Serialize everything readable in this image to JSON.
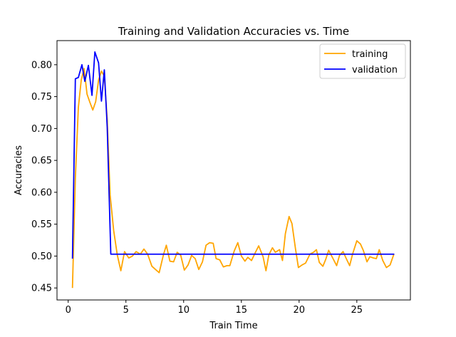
{
  "chart_data": {
    "type": "line",
    "title": "Training and Validation Accuracies vs. Time",
    "xlabel": "Train Time",
    "ylabel": "Accuracies",
    "xlim": [
      -0.97,
      29.64
    ],
    "ylim": [
      0.4312,
      0.8378
    ],
    "x_ticks": [
      0,
      5,
      10,
      15,
      20,
      25
    ],
    "x_tick_labels": [
      "0",
      "5",
      "10",
      "15",
      "20",
      "25"
    ],
    "y_ticks": [
      0.45,
      0.5,
      0.55,
      0.6,
      0.65,
      0.7,
      0.75,
      0.8
    ],
    "y_tick_labels": [
      "0.45",
      "0.50",
      "0.55",
      "0.60",
      "0.65",
      "0.70",
      "0.75",
      "0.80"
    ],
    "grid": false,
    "legend_position": "top-right",
    "series": [
      {
        "name": "training",
        "color": "#ffa500",
        "points": [
          [
            0.37,
            0.451
          ],
          [
            0.62,
            0.622
          ],
          [
            0.88,
            0.733
          ],
          [
            1.13,
            0.776
          ],
          [
            1.38,
            0.794
          ],
          [
            1.63,
            0.754
          ],
          [
            1.88,
            0.741
          ],
          [
            2.13,
            0.729
          ],
          [
            2.38,
            0.742
          ],
          [
            2.63,
            0.776
          ],
          [
            2.88,
            0.79
          ],
          [
            3.13,
            0.782
          ],
          [
            3.38,
            0.714
          ],
          [
            3.63,
            0.596
          ],
          [
            3.94,
            0.54
          ],
          [
            4.25,
            0.502
          ],
          [
            4.56,
            0.477
          ],
          [
            4.88,
            0.507
          ],
          [
            5.25,
            0.497
          ],
          [
            5.56,
            0.5
          ],
          [
            5.88,
            0.507
          ],
          [
            6.25,
            0.503
          ],
          [
            6.56,
            0.511
          ],
          [
            6.88,
            0.503
          ],
          [
            7.25,
            0.484
          ],
          [
            7.56,
            0.479
          ],
          [
            7.88,
            0.474
          ],
          [
            8.25,
            0.502
          ],
          [
            8.5,
            0.517
          ],
          [
            8.81,
            0.492
          ],
          [
            9.13,
            0.491
          ],
          [
            9.44,
            0.506
          ],
          [
            9.75,
            0.501
          ],
          [
            10.06,
            0.478
          ],
          [
            10.38,
            0.486
          ],
          [
            10.69,
            0.501
          ],
          [
            11.0,
            0.496
          ],
          [
            11.31,
            0.479
          ],
          [
            11.63,
            0.491
          ],
          [
            11.94,
            0.517
          ],
          [
            12.25,
            0.521
          ],
          [
            12.56,
            0.52
          ],
          [
            12.81,
            0.496
          ],
          [
            13.13,
            0.494
          ],
          [
            13.44,
            0.483
          ],
          [
            13.75,
            0.485
          ],
          [
            14.0,
            0.485
          ],
          [
            14.38,
            0.508
          ],
          [
            14.69,
            0.521
          ],
          [
            15.0,
            0.5
          ],
          [
            15.31,
            0.492
          ],
          [
            15.56,
            0.498
          ],
          [
            15.88,
            0.493
          ],
          [
            16.25,
            0.507
          ],
          [
            16.5,
            0.516
          ],
          [
            16.88,
            0.499
          ],
          [
            17.13,
            0.477
          ],
          [
            17.38,
            0.502
          ],
          [
            17.69,
            0.513
          ],
          [
            17.94,
            0.506
          ],
          [
            18.31,
            0.51
          ],
          [
            18.56,
            0.493
          ],
          [
            18.81,
            0.535
          ],
          [
            19.13,
            0.562
          ],
          [
            19.38,
            0.551
          ],
          [
            19.69,
            0.511
          ],
          [
            19.94,
            0.482
          ],
          [
            20.25,
            0.486
          ],
          [
            20.56,
            0.489
          ],
          [
            20.94,
            0.503
          ],
          [
            21.25,
            0.506
          ],
          [
            21.5,
            0.51
          ],
          [
            21.75,
            0.49
          ],
          [
            22.06,
            0.484
          ],
          [
            22.31,
            0.495
          ],
          [
            22.56,
            0.509
          ],
          [
            22.94,
            0.496
          ],
          [
            23.25,
            0.485
          ],
          [
            23.5,
            0.501
          ],
          [
            23.81,
            0.507
          ],
          [
            24.06,
            0.497
          ],
          [
            24.38,
            0.485
          ],
          [
            24.63,
            0.503
          ],
          [
            25.0,
            0.524
          ],
          [
            25.31,
            0.519
          ],
          [
            25.56,
            0.509
          ],
          [
            25.88,
            0.491
          ],
          [
            26.13,
            0.499
          ],
          [
            26.44,
            0.497
          ],
          [
            26.69,
            0.496
          ],
          [
            26.94,
            0.51
          ],
          [
            27.25,
            0.493
          ],
          [
            27.56,
            0.482
          ],
          [
            27.88,
            0.486
          ],
          [
            28.19,
            0.502
          ]
        ]
      },
      {
        "name": "validation",
        "color": "#0000ff",
        "points": [
          [
            0.37,
            0.497
          ],
          [
            0.62,
            0.778
          ],
          [
            0.88,
            0.78
          ],
          [
            1.19,
            0.8
          ],
          [
            1.44,
            0.774
          ],
          [
            1.75,
            0.799
          ],
          [
            2.06,
            0.752
          ],
          [
            2.31,
            0.82
          ],
          [
            2.63,
            0.803
          ],
          [
            2.88,
            0.743
          ],
          [
            3.13,
            0.792
          ],
          [
            3.38,
            0.702
          ],
          [
            3.69,
            0.503
          ],
          [
            28.19,
            0.503
          ]
        ]
      }
    ]
  }
}
